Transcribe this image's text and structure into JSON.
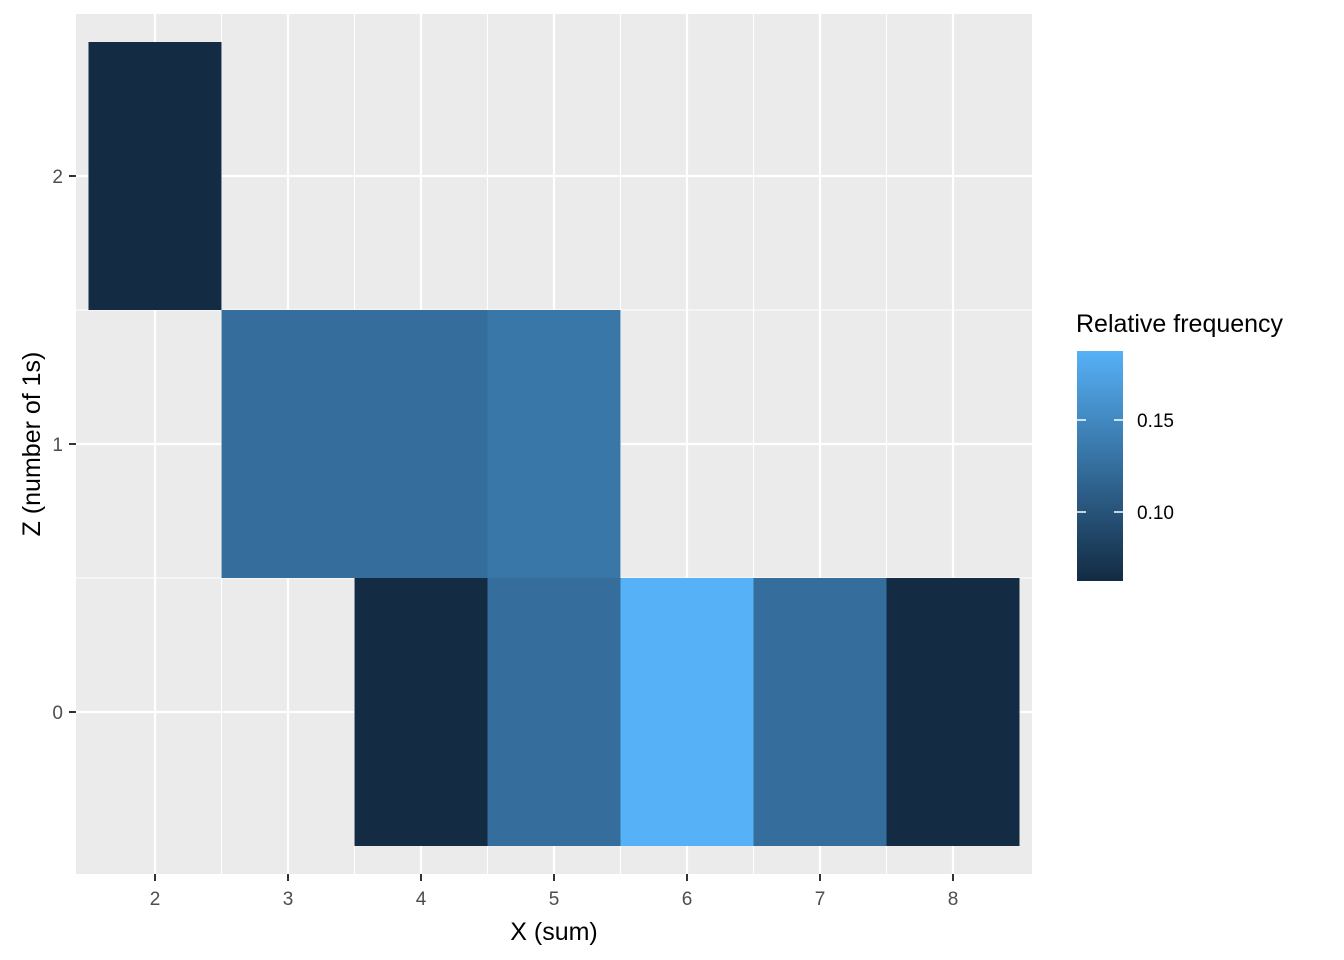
{
  "chart_data": {
    "type": "heatmap",
    "xlabel": "X (sum)",
    "ylabel": "Z (number of 1s)",
    "x_ticks": [
      2,
      3,
      4,
      5,
      6,
      7,
      8
    ],
    "y_ticks": [
      0,
      1,
      2
    ],
    "xlim": [
      1.5,
      8.5
    ],
    "ylim": [
      -0.5,
      2.5
    ],
    "grid": true,
    "cells": [
      {
        "x": 2,
        "z": 2,
        "value": 0.0625
      },
      {
        "x": 3,
        "z": 1,
        "value": 0.125
      },
      {
        "x": 4,
        "z": 1,
        "value": 0.125
      },
      {
        "x": 5,
        "z": 1,
        "value": 0.1333
      },
      {
        "x": 4,
        "z": 0,
        "value": 0.0625
      },
      {
        "x": 5,
        "z": 0,
        "value": 0.125
      },
      {
        "x": 6,
        "z": 0,
        "value": 0.1875
      },
      {
        "x": 7,
        "z": 0,
        "value": 0.125
      },
      {
        "x": 8,
        "z": 0,
        "value": 0.0625
      }
    ],
    "legend": {
      "title": "Relative frequency",
      "placement": "right",
      "min": 0.0625,
      "max": 0.1875,
      "breaks": [
        0.1,
        0.15
      ],
      "break_labels": [
        "0.10",
        "0.15"
      ],
      "low_color": "#132B43",
      "high_color": "#56B1F7"
    }
  }
}
